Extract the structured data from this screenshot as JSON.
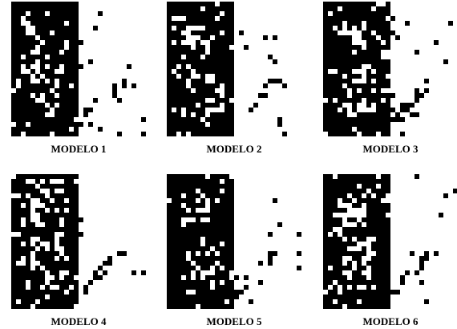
{
  "figure": {
    "panels": [
      {
        "label": "MODELO 1"
      },
      {
        "label": "MODELO 2"
      },
      {
        "label": "MODELO 3"
      },
      {
        "label": "MODELO 4"
      },
      {
        "label": "MODELO 5"
      },
      {
        "label": "MODELO 6"
      }
    ]
  }
}
